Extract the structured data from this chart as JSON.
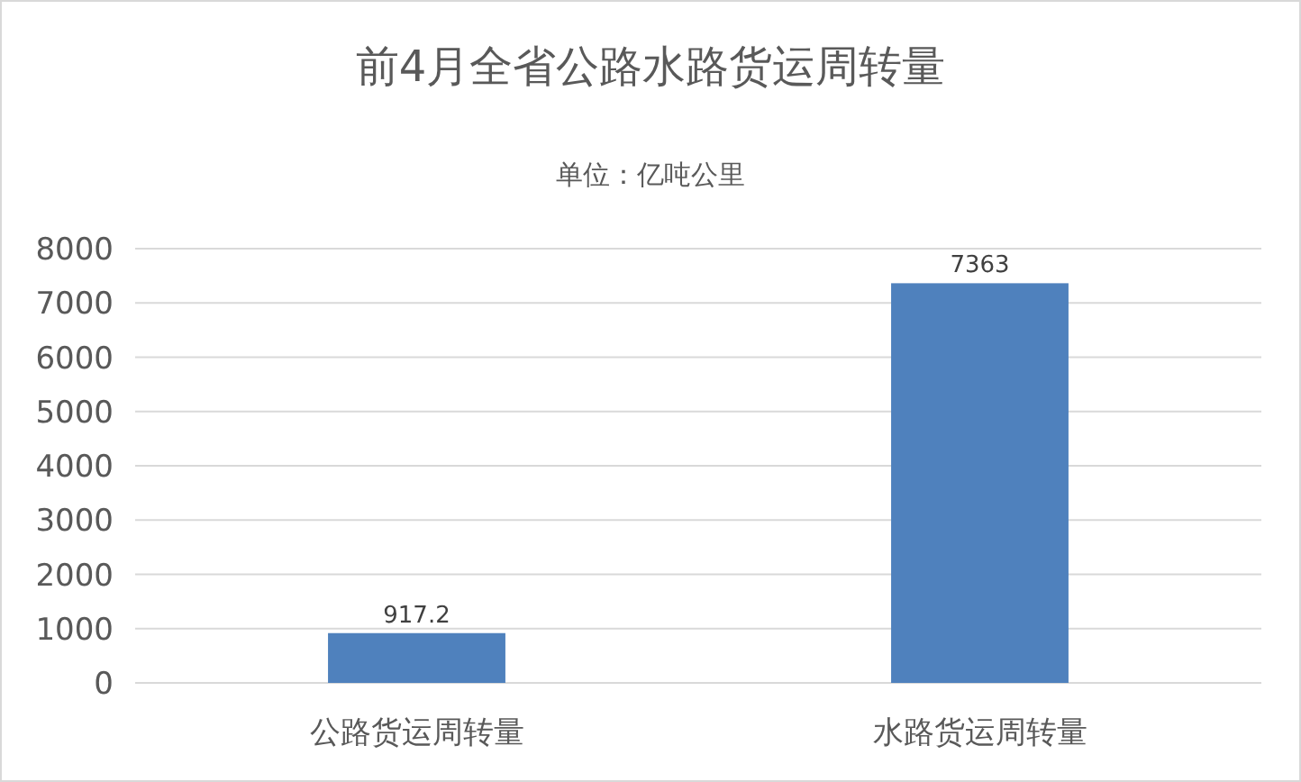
{
  "chart_data": {
    "type": "bar",
    "title": "前4月全省公路水路货运周转量",
    "subtitle": "单位：亿吨公里",
    "categories": [
      "公路货运周转量",
      "水路货运周转量"
    ],
    "values": [
      917.2,
      7363
    ],
    "color": "#4f81bd",
    "ylim": [
      0,
      8000
    ],
    "yticks": [
      0,
      1000,
      2000,
      3000,
      4000,
      5000,
      6000,
      7000,
      8000
    ],
    "grid": "y",
    "data_labels": true
  }
}
